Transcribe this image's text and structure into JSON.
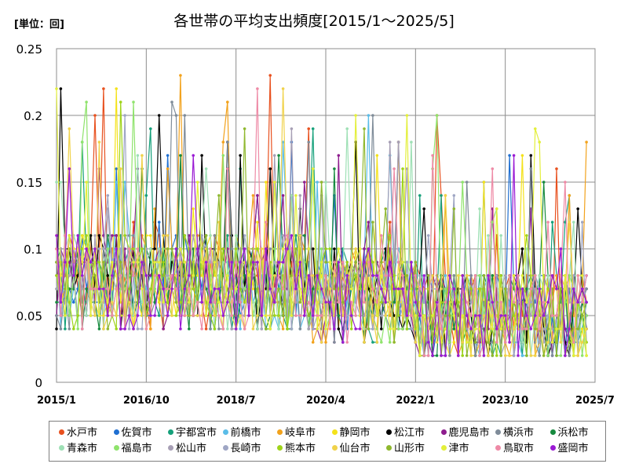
{
  "chart_data": {
    "type": "line",
    "title": "各世帯の平均支出頻度[2015/1～2025/5]",
    "unit_label": "[単位：回]",
    "xlabel": "",
    "ylabel": "",
    "ylim": [
      0,
      0.25
    ],
    "y_ticks": [
      "0",
      "0.05",
      "0.1",
      "0.15",
      "0.2",
      "0.25"
    ],
    "x_ticks": [
      "2015/1",
      "2016/10",
      "2018/7",
      "2020/4",
      "2022/1",
      "2023/10",
      "2025/7"
    ],
    "x_range": [
      "2015/1",
      "2025/7"
    ],
    "grid": true,
    "legend_position": "bottom",
    "series": [
      {
        "name": "水戸市",
        "color": "#e8501e"
      },
      {
        "name": "佐賀市",
        "color": "#1f6fd1"
      },
      {
        "name": "宇都宮市",
        "color": "#15a07a"
      },
      {
        "name": "前橋市",
        "color": "#5bbde8"
      },
      {
        "name": "岐阜市",
        "color": "#f2a21c"
      },
      {
        "name": "静岡市",
        "color": "#f4e21a"
      },
      {
        "name": "松江市",
        "color": "#000000"
      },
      {
        "name": "鹿児島市",
        "color": "#8e1d8e"
      },
      {
        "name": "横浜市",
        "color": "#7f8c99"
      },
      {
        "name": "浜松市",
        "color": "#168a3e"
      },
      {
        "name": "青森市",
        "color": "#9ee0b5"
      },
      {
        "name": "福島市",
        "color": "#8fe36c"
      },
      {
        "name": "松山市",
        "color": "#a79fb5"
      },
      {
        "name": "長崎市",
        "color": "#9fa6c4"
      },
      {
        "name": "熊本市",
        "color": "#9fd41a"
      },
      {
        "name": "仙台市",
        "color": "#f0d24a"
      },
      {
        "name": "山形市",
        "color": "#8fb82e"
      },
      {
        "name": "津市",
        "color": "#e3ef3a"
      },
      {
        "name": "鳥取市",
        "color": "#ee8aa6"
      },
      {
        "name": "盛岡市",
        "color": "#9a1ad4"
      }
    ]
  }
}
